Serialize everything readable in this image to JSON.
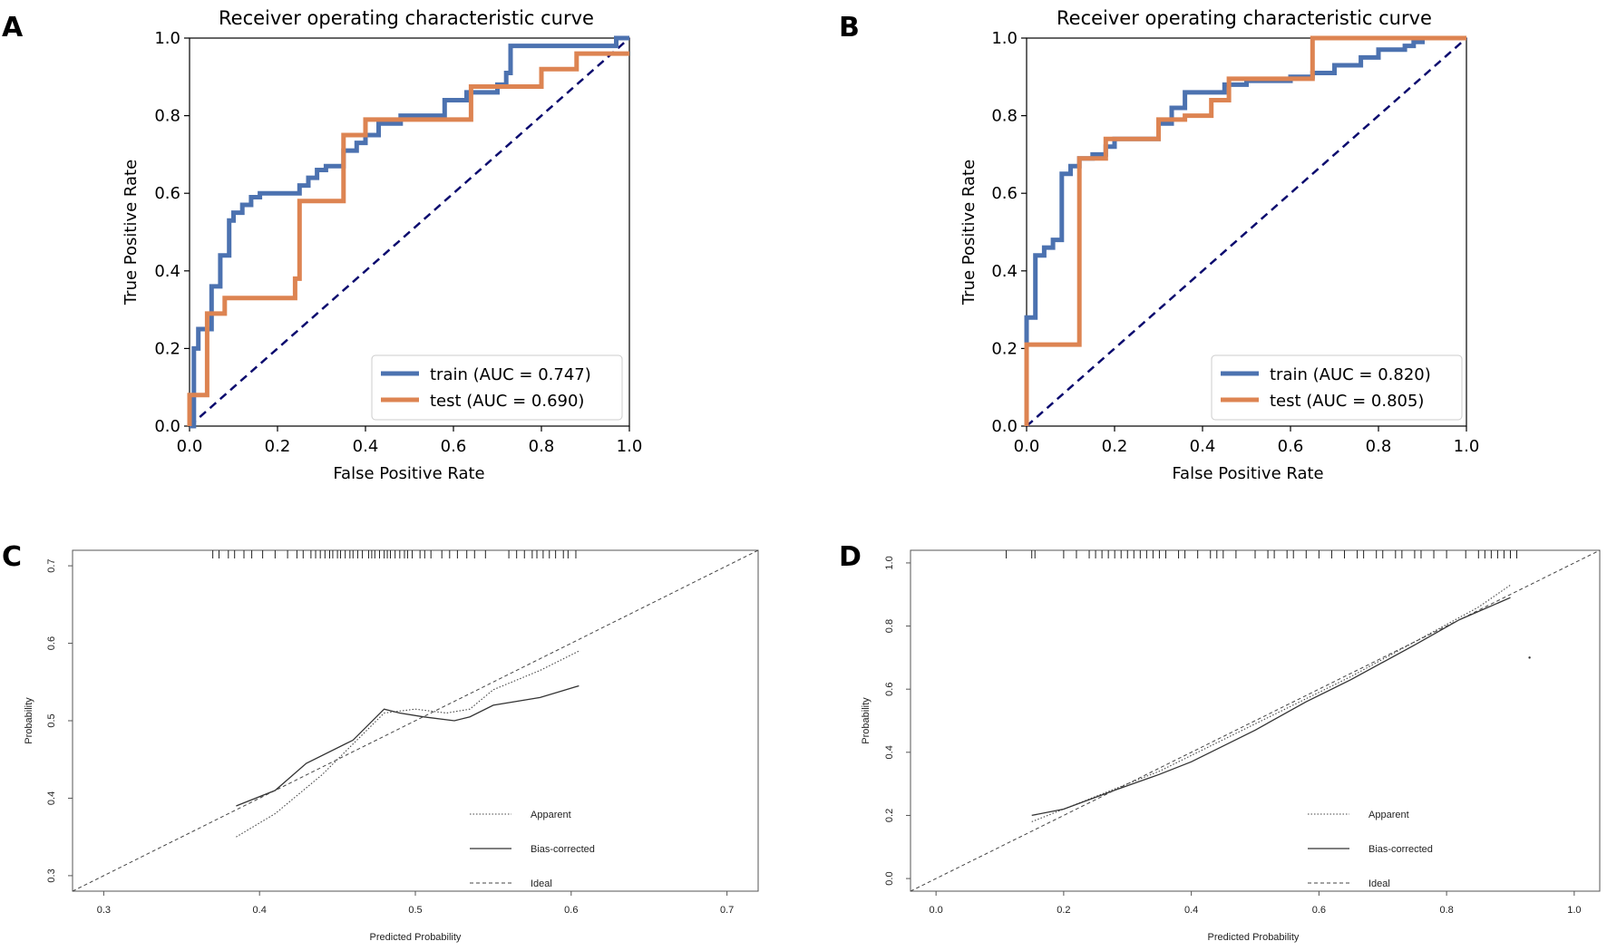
{
  "colors": {
    "train": "#4c72b0",
    "test": "#dd8452",
    "diagonal": "#0b0b6e",
    "cal": "#333333"
  },
  "panels": {
    "A": {
      "letter": "A"
    },
    "B": {
      "letter": "B"
    },
    "C": {
      "letter": "C"
    },
    "D": {
      "letter": "D"
    }
  },
  "chart_data": [
    {
      "id": "A",
      "type": "line",
      "title": "Receiver operating characteristic curve",
      "xlabel": "False Positive Rate",
      "ylabel": "True Positive Rate",
      "xlim": [
        0,
        1
      ],
      "ylim": [
        0,
        1
      ],
      "xticks": [
        "0.0",
        "0.2",
        "0.4",
        "0.6",
        "0.8",
        "1.0"
      ],
      "yticks": [
        "0.0",
        "0.2",
        "0.4",
        "0.6",
        "0.8",
        "1.0"
      ],
      "legend_position": "bottom-right",
      "series": [
        {
          "name": "train (AUC = 0.747)",
          "key": "train",
          "x": [
            0,
            0.01,
            0.01,
            0.02,
            0.02,
            0.03,
            0.03,
            0.05,
            0.05,
            0.07,
            0.07,
            0.09,
            0.09,
            0.1,
            0.1,
            0.12,
            0.12,
            0.14,
            0.14,
            0.16,
            0.16,
            0.18,
            0.18,
            0.25,
            0.25,
            0.27,
            0.27,
            0.29,
            0.29,
            0.31,
            0.31,
            0.35,
            0.35,
            0.38,
            0.38,
            0.4,
            0.4,
            0.43,
            0.43,
            0.48,
            0.48,
            0.58,
            0.58,
            0.63,
            0.63,
            0.7,
            0.7,
            0.72,
            0.72,
            0.73,
            0.73,
            0.97,
            0.97,
            1.0
          ],
          "y": [
            0,
            0,
            0.2,
            0.2,
            0.25,
            0.25,
            0.25,
            0.25,
            0.36,
            0.36,
            0.44,
            0.44,
            0.53,
            0.53,
            0.55,
            0.55,
            0.57,
            0.57,
            0.59,
            0.59,
            0.6,
            0.6,
            0.6,
            0.6,
            0.62,
            0.62,
            0.64,
            0.64,
            0.66,
            0.66,
            0.67,
            0.67,
            0.71,
            0.71,
            0.73,
            0.73,
            0.75,
            0.75,
            0.78,
            0.78,
            0.8,
            0.8,
            0.84,
            0.84,
            0.86,
            0.86,
            0.88,
            0.88,
            0.91,
            0.91,
            0.98,
            0.98,
            1.0,
            1.0
          ]
        },
        {
          "name": "test (AUC = 0.690)",
          "key": "test",
          "x": [
            0,
            0,
            0.04,
            0.04,
            0.08,
            0.08,
            0.24,
            0.24,
            0.25,
            0.25,
            0.35,
            0.35,
            0.4,
            0.4,
            0.64,
            0.64,
            0.8,
            0.8,
            0.88,
            0.88,
            1.0
          ],
          "y": [
            0,
            0.08,
            0.08,
            0.29,
            0.29,
            0.33,
            0.33,
            0.38,
            0.38,
            0.58,
            0.58,
            0.75,
            0.75,
            0.79,
            0.79,
            0.875,
            0.875,
            0.92,
            0.92,
            0.96,
            0.96
          ]
        }
      ],
      "reference": {
        "name": "chance",
        "x": [
          0,
          1
        ],
        "y": [
          0,
          1
        ]
      }
    },
    {
      "id": "B",
      "type": "line",
      "title": "Receiver operating characteristic curve",
      "xlabel": "False Positive Rate",
      "ylabel": "True Positive Rate",
      "xlim": [
        0,
        1
      ],
      "ylim": [
        0,
        1
      ],
      "xticks": [
        "0.0",
        "0.2",
        "0.4",
        "0.6",
        "0.8",
        "1.0"
      ],
      "yticks": [
        "0.0",
        "0.2",
        "0.4",
        "0.6",
        "0.8",
        "1.0"
      ],
      "legend_position": "bottom-right",
      "series": [
        {
          "name": "train (AUC = 0.820)",
          "key": "train",
          "x": [
            0,
            0,
            0.02,
            0.02,
            0.04,
            0.04,
            0.06,
            0.06,
            0.08,
            0.08,
            0.1,
            0.1,
            0.12,
            0.12,
            0.15,
            0.15,
            0.18,
            0.18,
            0.2,
            0.2,
            0.3,
            0.3,
            0.33,
            0.33,
            0.36,
            0.36,
            0.45,
            0.45,
            0.5,
            0.5,
            0.6,
            0.6,
            0.65,
            0.65,
            0.7,
            0.7,
            0.76,
            0.76,
            0.8,
            0.8,
            0.86,
            0.86,
            0.88,
            0.88,
            0.9,
            0.9,
            1.0
          ],
          "y": [
            0,
            0.28,
            0.28,
            0.44,
            0.44,
            0.46,
            0.46,
            0.48,
            0.48,
            0.65,
            0.65,
            0.67,
            0.67,
            0.69,
            0.69,
            0.7,
            0.7,
            0.72,
            0.72,
            0.74,
            0.74,
            0.78,
            0.78,
            0.82,
            0.82,
            0.86,
            0.86,
            0.88,
            0.88,
            0.89,
            0.89,
            0.9,
            0.9,
            0.91,
            0.91,
            0.93,
            0.93,
            0.95,
            0.95,
            0.97,
            0.97,
            0.98,
            0.98,
            0.99,
            0.99,
            1.0,
            1.0
          ]
        },
        {
          "name": "test (AUC = 0.805)",
          "key": "test",
          "x": [
            0,
            0,
            0.12,
            0.12,
            0.18,
            0.18,
            0.3,
            0.3,
            0.36,
            0.36,
            0.42,
            0.42,
            0.46,
            0.46,
            0.65,
            0.65,
            1.0
          ],
          "y": [
            0,
            0.21,
            0.21,
            0.69,
            0.69,
            0.74,
            0.74,
            0.79,
            0.79,
            0.8,
            0.8,
            0.84,
            0.84,
            0.895,
            0.895,
            1.0,
            1.0
          ]
        }
      ],
      "reference": {
        "name": "chance",
        "x": [
          0,
          1
        ],
        "y": [
          0,
          1
        ]
      }
    },
    {
      "id": "C",
      "type": "line",
      "title": "",
      "xlabel": "Predicted Probability",
      "ylabel": "Probability",
      "xlim": [
        0.28,
        0.72
      ],
      "ylim": [
        0.28,
        0.72
      ],
      "xticks": [
        "0.3",
        "0.4",
        "0.5",
        "0.6",
        "0.7"
      ],
      "yticks": [
        "0.3",
        "0.4",
        "0.5",
        "0.6",
        "0.7"
      ],
      "legend_position": "bottom-right",
      "legend": [
        "Apparent",
        "Bias-corrected",
        "Ideal"
      ],
      "series": [
        {
          "name": "Apparent",
          "style": "dotted",
          "x": [
            0.385,
            0.41,
            0.44,
            0.465,
            0.48,
            0.5,
            0.52,
            0.535,
            0.55,
            0.58,
            0.605
          ],
          "y": [
            0.35,
            0.38,
            0.43,
            0.48,
            0.51,
            0.515,
            0.51,
            0.515,
            0.54,
            0.565,
            0.59
          ]
        },
        {
          "name": "Bias-corrected",
          "style": "solid",
          "x": [
            0.385,
            0.41,
            0.43,
            0.46,
            0.48,
            0.49,
            0.505,
            0.525,
            0.535,
            0.55,
            0.58,
            0.605
          ],
          "y": [
            0.39,
            0.41,
            0.445,
            0.475,
            0.515,
            0.51,
            0.505,
            0.5,
            0.505,
            0.52,
            0.53,
            0.545
          ]
        },
        {
          "name": "Ideal",
          "style": "dashed",
          "x": [
            0.28,
            0.72
          ],
          "y": [
            0.28,
            0.72
          ]
        }
      ],
      "rug": [
        0.37,
        0.374,
        0.38,
        0.384,
        0.39,
        0.395,
        0.402,
        0.41,
        0.418,
        0.424,
        0.428,
        0.433,
        0.436,
        0.439,
        0.442,
        0.445,
        0.447,
        0.45,
        0.452,
        0.455,
        0.458,
        0.46,
        0.463,
        0.466,
        0.47,
        0.472,
        0.474,
        0.477,
        0.48,
        0.482,
        0.484,
        0.487,
        0.49,
        0.493,
        0.495,
        0.498,
        0.503,
        0.506,
        0.51,
        0.517,
        0.522,
        0.527,
        0.533,
        0.538,
        0.545,
        0.56,
        0.565,
        0.57,
        0.575,
        0.578,
        0.582,
        0.586,
        0.59,
        0.595,
        0.598,
        0.603
      ]
    },
    {
      "id": "D",
      "type": "line",
      "title": "",
      "xlabel": "Predicted Probability",
      "ylabel": "Probability",
      "xlim": [
        -0.04,
        1.04
      ],
      "ylim": [
        -0.04,
        1.04
      ],
      "xticks": [
        "0.0",
        "0.2",
        "0.4",
        "0.6",
        "0.8",
        "1.0"
      ],
      "yticks": [
        "0.0",
        "0.2",
        "0.4",
        "0.6",
        "0.8",
        "1.0"
      ],
      "legend_position": "bottom-right",
      "legend": [
        "Apparent",
        "Bias-corrected",
        "Ideal"
      ],
      "series": [
        {
          "name": "Apparent",
          "style": "dotted",
          "x": [
            0.15,
            0.25,
            0.35,
            0.45,
            0.55,
            0.65,
            0.75,
            0.85,
            0.9
          ],
          "y": [
            0.18,
            0.26,
            0.34,
            0.44,
            0.54,
            0.64,
            0.75,
            0.86,
            0.93
          ]
        },
        {
          "name": "Bias-corrected",
          "style": "solid",
          "x": [
            0.15,
            0.2,
            0.28,
            0.35,
            0.4,
            0.5,
            0.58,
            0.65,
            0.75,
            0.82,
            0.9
          ],
          "y": [
            0.2,
            0.22,
            0.28,
            0.33,
            0.37,
            0.47,
            0.56,
            0.63,
            0.74,
            0.82,
            0.89
          ]
        },
        {
          "name": "Ideal",
          "style": "dashed",
          "x": [
            -0.04,
            1.04
          ],
          "y": [
            -0.04,
            1.04
          ]
        }
      ],
      "rug": [
        0.11,
        0.15,
        0.155,
        0.2,
        0.22,
        0.24,
        0.25,
        0.26,
        0.27,
        0.28,
        0.29,
        0.3,
        0.31,
        0.32,
        0.33,
        0.34,
        0.35,
        0.36,
        0.38,
        0.39,
        0.41,
        0.43,
        0.44,
        0.45,
        0.47,
        0.5,
        0.52,
        0.53,
        0.55,
        0.56,
        0.58,
        0.6,
        0.62,
        0.64,
        0.66,
        0.67,
        0.69,
        0.7,
        0.72,
        0.73,
        0.75,
        0.76,
        0.78,
        0.8,
        0.83,
        0.85,
        0.86,
        0.87,
        0.88,
        0.89,
        0.9,
        0.9,
        0.91
      ],
      "stray_point": {
        "x": 0.93,
        "y": 0.7
      }
    }
  ]
}
